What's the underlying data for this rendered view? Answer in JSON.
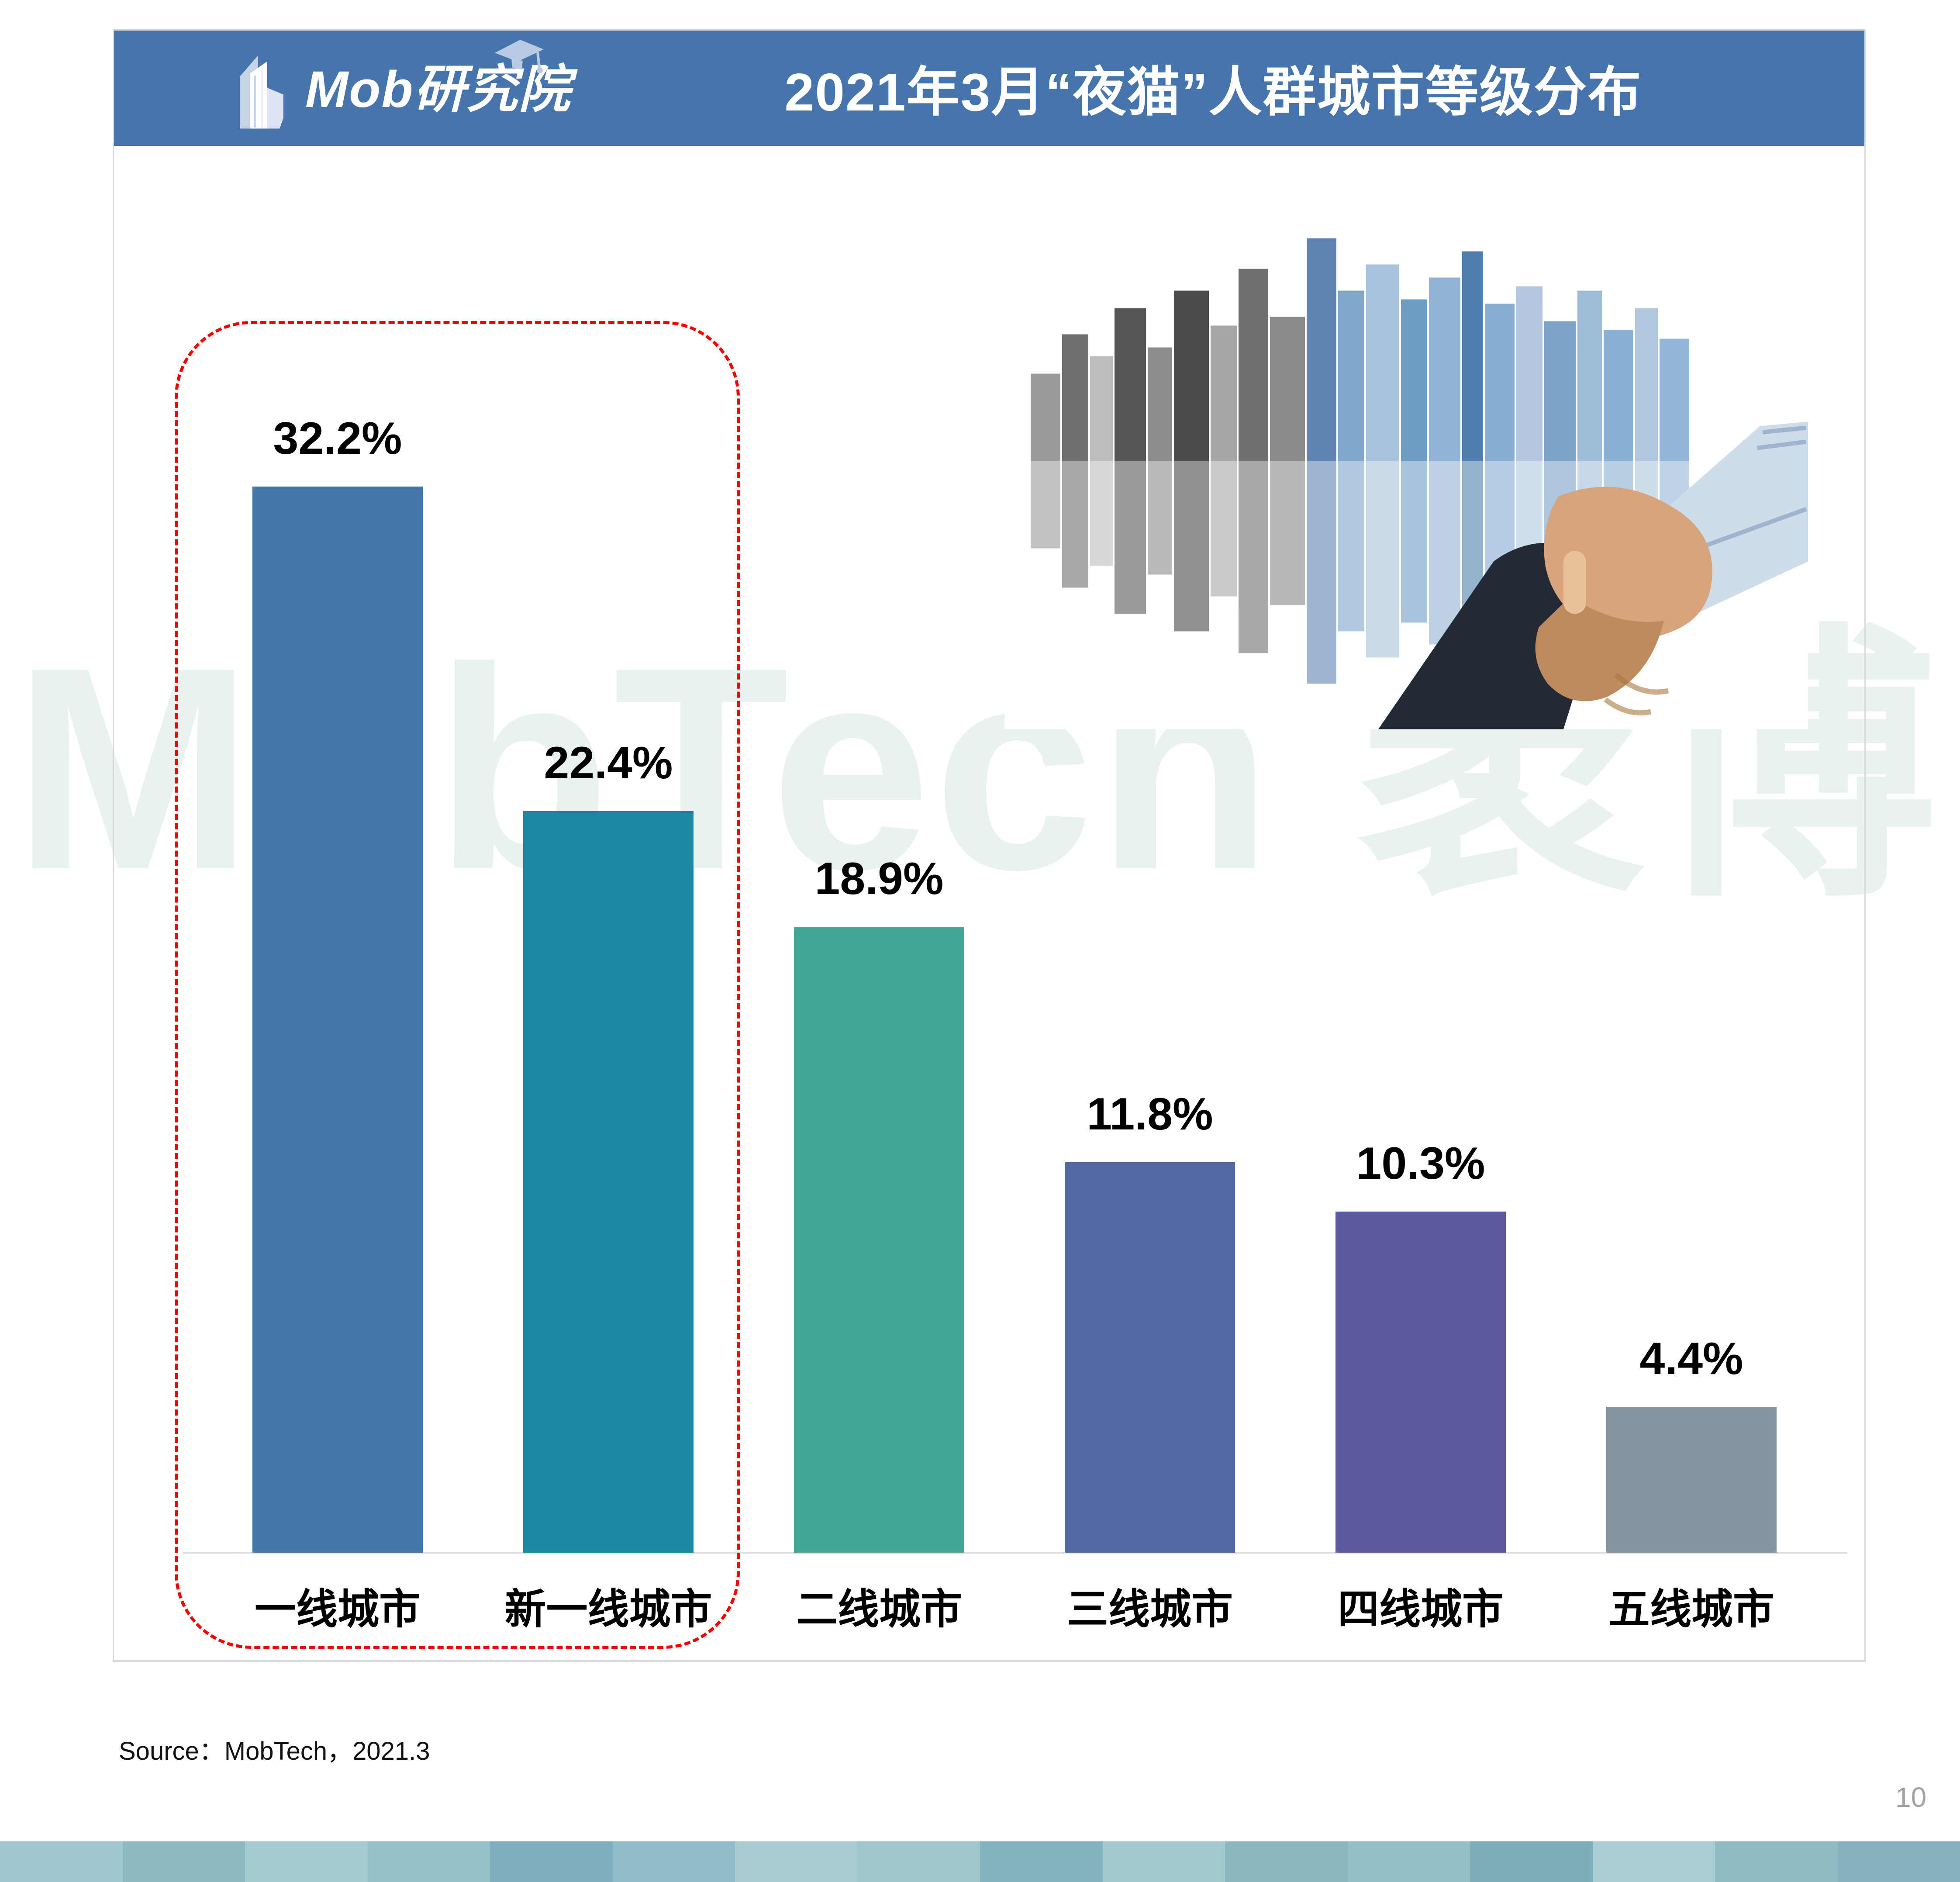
{
  "header": {
    "logo_brand": "Mob研究院",
    "title": "2021年3月“夜猫”人群城市等级分布"
  },
  "chart_data": {
    "type": "bar",
    "title": "2021年3月“夜猫”人群城市等级分布",
    "categories": [
      "一线城市",
      "新一线城市",
      "二线城市",
      "三线城市",
      "四线城市",
      "五线城市"
    ],
    "values": [
      32.2,
      22.4,
      18.9,
      11.8,
      10.3,
      4.4
    ],
    "value_labels": [
      "32.2%",
      "22.4%",
      "18.9%",
      "11.8%",
      "10.3%",
      "4.4%"
    ],
    "unit": "%",
    "colors": [
      "#4476aa",
      "#1b88a3",
      "#3fa794",
      "#5168a5",
      "#5c5ba0",
      "#8694a2"
    ],
    "ylim": [
      0,
      35
    ],
    "grid": false,
    "legend": false,
    "annotation": {
      "style": "red-dashed-rounded-rect",
      "around_categories": [
        "一线城市",
        "新一线城市"
      ]
    }
  },
  "watermark_text": "MobTech 袤博",
  "source_note": "Source：MobTech，2021.3",
  "page_number": "10",
  "footer_strip_colors": [
    "#9ec7cf",
    "#8cb8c2",
    "#a4cad1",
    "#97c1c9",
    "#7fafbc",
    "#8fbcc6",
    "#a6cbd2",
    "#9dc6cd",
    "#84b2be",
    "#a3c9d0",
    "#8bb7c1",
    "#95c0c8",
    "#7eadba",
    "#a8cdd3",
    "#8fbac4",
    "#86b3bf"
  ],
  "theme": {
    "header_bg": "#4575ac",
    "panel_border": "#d9d9d9",
    "axis_line": "#d9d9d9",
    "highlight_red": "#f60000",
    "watermark_color": "#e9f2ef",
    "page_number_color": "#a3a3a3"
  }
}
